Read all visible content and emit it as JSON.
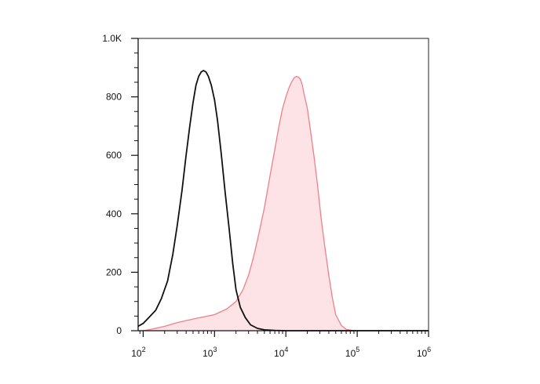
{
  "chart_data": {
    "type": "area",
    "title": "",
    "xlabel": "",
    "ylabel": "",
    "x_scale": "log",
    "xlim": [
      85,
      1000000
    ],
    "ylim": [
      0,
      1000
    ],
    "grid": false,
    "legend": "none",
    "y_ticks": [
      {
        "value": 0,
        "label": "0"
      },
      {
        "value": 200,
        "label": "200"
      },
      {
        "value": 400,
        "label": "400"
      },
      {
        "value": 600,
        "label": "600"
      },
      {
        "value": 800,
        "label": "800"
      },
      {
        "value": 1000,
        "label": "1.0K"
      }
    ],
    "x_ticks": [
      {
        "value": 100,
        "base": "10",
        "exp": "2"
      },
      {
        "value": 1000,
        "base": "10",
        "exp": "3"
      },
      {
        "value": 10000,
        "base": "10",
        "exp": "4"
      },
      {
        "value": 100000,
        "base": "10",
        "exp": "5"
      },
      {
        "value": 1000000,
        "base": "10",
        "exp": "6"
      }
    ],
    "series": [
      {
        "style": "line",
        "color": "#111111",
        "points": [
          [
            85,
            15
          ],
          [
            100,
            25
          ],
          [
            120,
            45
          ],
          [
            150,
            70
          ],
          [
            180,
            110
          ],
          [
            220,
            170
          ],
          [
            260,
            260
          ],
          [
            300,
            360
          ],
          [
            350,
            480
          ],
          [
            400,
            600
          ],
          [
            450,
            700
          ],
          [
            500,
            780
          ],
          [
            550,
            840
          ],
          [
            600,
            870
          ],
          [
            650,
            885
          ],
          [
            700,
            890
          ],
          [
            760,
            885
          ],
          [
            820,
            870
          ],
          [
            900,
            840
          ],
          [
            1000,
            790
          ],
          [
            1100,
            720
          ],
          [
            1250,
            600
          ],
          [
            1400,
            480
          ],
          [
            1600,
            350
          ],
          [
            1800,
            230
          ],
          [
            2000,
            140
          ],
          [
            2300,
            80
          ],
          [
            2700,
            45
          ],
          [
            3200,
            20
          ],
          [
            4000,
            8
          ],
          [
            5000,
            3
          ],
          [
            7000,
            1
          ],
          [
            10000,
            0
          ],
          [
            1000000,
            0
          ]
        ]
      },
      {
        "style": "filled",
        "color": "#f07f8a",
        "fill": "#fde3e5",
        "points": [
          [
            85,
            0
          ],
          [
            100,
            0
          ],
          [
            130,
            5
          ],
          [
            200,
            15
          ],
          [
            300,
            28
          ],
          [
            500,
            40
          ],
          [
            1000,
            55
          ],
          [
            1500,
            75
          ],
          [
            2000,
            100
          ],
          [
            2500,
            140
          ],
          [
            3000,
            190
          ],
          [
            3500,
            250
          ],
          [
            4000,
            310
          ],
          [
            5000,
            420
          ],
          [
            6000,
            530
          ],
          [
            7000,
            620
          ],
          [
            8000,
            700
          ],
          [
            9000,
            760
          ],
          [
            10000,
            800
          ],
          [
            11000,
            830
          ],
          [
            12000,
            850
          ],
          [
            13000,
            865
          ],
          [
            14000,
            870
          ],
          [
            15000,
            868
          ],
          [
            16000,
            860
          ],
          [
            17000,
            840
          ],
          [
            18000,
            810
          ],
          [
            20000,
            760
          ],
          [
            22000,
            690
          ],
          [
            25000,
            590
          ],
          [
            28000,
            490
          ],
          [
            31000,
            390
          ],
          [
            35000,
            290
          ],
          [
            40000,
            190
          ],
          [
            45000,
            110
          ],
          [
            50000,
            55
          ],
          [
            60000,
            18
          ],
          [
            70000,
            5
          ],
          [
            85000,
            1
          ],
          [
            100000,
            0
          ],
          [
            1000000,
            0
          ]
        ]
      }
    ]
  }
}
